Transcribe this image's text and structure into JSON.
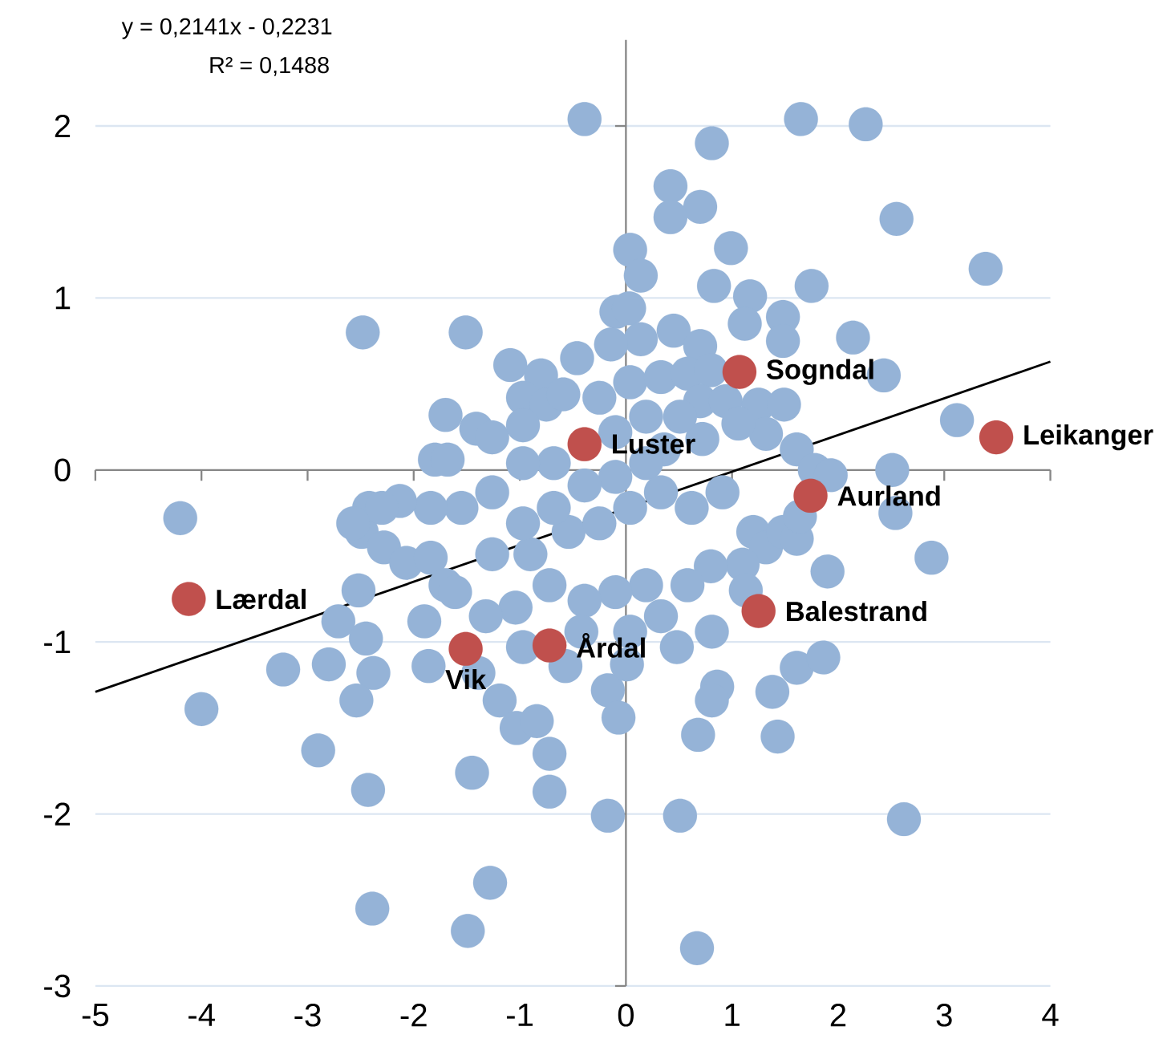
{
  "chart_data": {
    "type": "scatter",
    "xlim": [
      -5,
      4
    ],
    "ylim": [
      -3,
      2.5
    ],
    "xticks": [
      -5,
      -4,
      -3,
      -2,
      -1,
      0,
      1,
      2,
      3,
      4
    ],
    "yticks": [
      -3,
      -2,
      -1,
      0,
      1,
      2
    ],
    "grid": "y",
    "marker": "circle",
    "ref_lines": [
      {
        "axis": "x",
        "value": 0,
        "color": "#868686"
      }
    ],
    "series": [
      {
        "color": "#95b3d7",
        "x": [
          -0.39,
          1.65,
          2.26,
          0.81,
          0.42,
          0.7,
          0.42,
          2.55,
          3.39,
          0.04,
          0.99,
          0.14,
          1.75,
          -2.48,
          -1.51,
          1.17,
          0.83,
          0.45,
          1.48,
          2.14,
          1.48,
          0.7,
          1.12,
          -0.09,
          0.03,
          0.14,
          -1.09,
          -0.8,
          -0.46,
          -0.14,
          -1.7,
          -1.8,
          -1.68,
          -0.97,
          -0.75,
          -0.59,
          -1.41,
          -1.26,
          -0.97,
          -0.25,
          0.04,
          0.33,
          0.58,
          0.8,
          0.7,
          0.94,
          1.25,
          1.49,
          2.43,
          3.12,
          2.51,
          1.61,
          1.78,
          1.93,
          1.32,
          1.06,
          0.72,
          0.36,
          0.51,
          0.19,
          -0.1,
          0.19,
          -0.1,
          -0.39,
          -0.68,
          -0.97,
          -1.26,
          -1.55,
          -1.84,
          -2.13,
          -2.42,
          -2.49,
          -2.3,
          -2.57,
          -4.2,
          -2.28,
          -2.07,
          -1.84,
          -1.7,
          -1.26,
          -0.9,
          -0.54,
          -0.25,
          0.04,
          0.33,
          0.62,
          0.91,
          1.2,
          1.32,
          1.48,
          1.61,
          1.64,
          2.54,
          2.88,
          1.9,
          1.1,
          1.13,
          0.8,
          0.58,
          0.19,
          -0.1,
          -0.39,
          -0.72,
          -1.04,
          -1.32,
          -1.61,
          -1.9,
          -2.52,
          -2.71,
          -2.45,
          -2.38,
          -2.54,
          -2.8,
          -3.23,
          -4.0,
          -2.9,
          -2.43,
          -2.39,
          -1.49,
          -1.28,
          -1.45,
          -1.86,
          -1.39,
          -1.19,
          -1.03,
          -0.84,
          -0.72,
          -0.72,
          -0.97,
          -0.57,
          -0.17,
          -0.07,
          0.01,
          -0.17,
          0.51,
          0.68,
          0.86,
          0.81,
          1.2,
          1.38,
          1.43,
          1.61,
          1.86,
          2.62,
          0.67,
          0.81,
          0.48,
          0.33,
          0.04,
          -0.42,
          -0.46,
          -0.68,
          -0.97
        ],
        "values": [
          2.04,
          2.04,
          2.01,
          1.9,
          1.65,
          1.53,
          1.47,
          1.46,
          1.17,
          1.28,
          1.29,
          1.13,
          1.07,
          0.8,
          0.8,
          1.01,
          1.07,
          0.81,
          0.89,
          0.77,
          0.75,
          0.72,
          0.85,
          0.92,
          0.94,
          0.76,
          0.61,
          0.55,
          0.65,
          0.73,
          0.32,
          0.06,
          0.06,
          0.42,
          0.38,
          0.44,
          0.24,
          0.19,
          0.26,
          0.42,
          0.51,
          0.54,
          0.56,
          0.58,
          0.4,
          0.4,
          0.38,
          0.38,
          0.55,
          0.29,
          0.0,
          0.12,
          0.0,
          -0.03,
          0.21,
          0.27,
          0.18,
          0.12,
          0.31,
          0.31,
          0.22,
          0.04,
          -0.04,
          -0.09,
          0.04,
          0.04,
          -0.13,
          -0.22,
          -0.22,
          -0.18,
          -0.22,
          -0.36,
          -0.22,
          -0.31,
          -0.28,
          -0.45,
          -0.54,
          -0.51,
          -0.67,
          -0.49,
          -0.49,
          -0.36,
          -0.31,
          -0.22,
          -0.13,
          -0.22,
          -0.13,
          -0.36,
          -0.45,
          -0.36,
          -0.4,
          -0.27,
          -0.25,
          -0.51,
          -0.59,
          -0.55,
          -0.7,
          -0.56,
          -0.67,
          -0.67,
          -0.71,
          -0.76,
          -0.67,
          -0.8,
          -0.85,
          -0.71,
          -0.88,
          -0.7,
          -0.88,
          -0.98,
          -1.18,
          -1.34,
          -1.13,
          -1.16,
          -1.39,
          -1.63,
          -1.86,
          -2.55,
          -2.68,
          -2.4,
          -1.76,
          -1.14,
          -1.18,
          -1.34,
          -1.5,
          -1.46,
          -1.65,
          -1.87,
          -1.03,
          -1.14,
          -1.28,
          -1.44,
          -1.13,
          -2.01,
          -2.01,
          -1.54,
          -1.26,
          -1.34,
          null,
          -1.29,
          -1.55,
          -1.15,
          -1.09,
          -2.03,
          -2.78,
          -0.94,
          -1.03,
          -0.85,
          -0.94,
          -0.94,
          null,
          -0.22,
          -0.31
        ]
      },
      {
        "color": "#c0504d",
        "x": [
          1.07,
          -0.39,
          3.49,
          1.74,
          -4.12,
          1.25,
          -0.72,
          -1.51
        ],
        "values": [
          0.57,
          0.15,
          0.19,
          -0.15,
          -0.75,
          -0.82,
          -1.02,
          -1.04
        ]
      },
      {
        "type": "line",
        "color": "#000000",
        "marker": "none",
        "x": [
          -5,
          4
        ],
        "values": [
          -1.29,
          0.63
        ]
      }
    ],
    "annotations": [
      "y = 0,2141x - 0,2231",
      "R² = 0,1488",
      {
        "text": "Sogndal",
        "x": 1.07,
        "y": 0.57
      },
      {
        "text": "Luster",
        "x": -0.39,
        "y": 0.15
      },
      {
        "text": "Leikanger",
        "x": 3.49,
        "y": 0.19
      },
      {
        "text": "Aurland",
        "x": 1.74,
        "y": -0.15
      },
      {
        "text": "Lærdal",
        "x": -4.12,
        "y": -0.75
      },
      {
        "text": "Balestrand",
        "x": 1.25,
        "y": -0.82
      },
      {
        "text": "Årdal",
        "x": -0.72,
        "y": -1.02
      },
      {
        "text": "Vik",
        "x": -1.51,
        "y": -1.04
      }
    ]
  }
}
